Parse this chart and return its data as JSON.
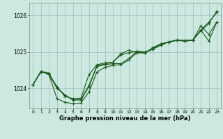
{
  "title": "Graphe pression niveau de la mer (hPa)",
  "x_labels": [
    "0",
    "1",
    "2",
    "3",
    "4",
    "5",
    "6",
    "7",
    "8",
    "9",
    "10",
    "11",
    "12",
    "13",
    "14",
    "15",
    "16",
    "17",
    "18",
    "19",
    "20",
    "21",
    "22",
    "23"
  ],
  "xlim": [
    -0.5,
    23.5
  ],
  "ylim": [
    1023.45,
    1026.35
  ],
  "yticks": [
    1024,
    1025,
    1026
  ],
  "background_color": "#cce8e0",
  "grid_color": "#9bbfb8",
  "line_color": "#1a5c1a",
  "lines": [
    [
      1024.1,
      1024.45,
      1024.4,
      1024.05,
      1023.78,
      1023.72,
      1023.73,
      1024.38,
      1024.65,
      1024.7,
      1024.72,
      1024.95,
      1025.05,
      1024.98,
      1024.97,
      1025.12,
      1025.22,
      1025.27,
      1025.32,
      1025.3,
      1025.32,
      1025.6,
      1025.3,
      1025.82
    ],
    [
      1024.1,
      1024.47,
      1024.42,
      1024.0,
      1023.82,
      1023.68,
      1023.68,
      1024.05,
      1024.6,
      1024.65,
      1024.68,
      1024.68,
      1024.82,
      1025.02,
      1025.0,
      1025.08,
      1025.22,
      1025.27,
      1025.32,
      1025.3,
      1025.32,
      1025.58,
      1025.78,
      1026.12
    ],
    [
      1024.1,
      1024.47,
      1024.38,
      1023.72,
      1023.62,
      1023.58,
      1023.6,
      1023.9,
      1024.45,
      1024.58,
      1024.63,
      1024.65,
      1024.78,
      1024.98,
      1024.98,
      1025.08,
      1025.18,
      1025.28,
      1025.33,
      1025.32,
      1025.33,
      1025.6,
      1025.82,
      1026.08
    ],
    [
      1024.1,
      1024.47,
      1024.38,
      1024.02,
      1023.82,
      1023.68,
      1023.7,
      1024.08,
      1024.62,
      1024.67,
      1024.72,
      1024.92,
      1024.98,
      1025.02,
      1024.98,
      1025.08,
      1025.22,
      1025.27,
      1025.32,
      1025.3,
      1025.32,
      1025.72,
      1025.48,
      1025.82
    ]
  ]
}
